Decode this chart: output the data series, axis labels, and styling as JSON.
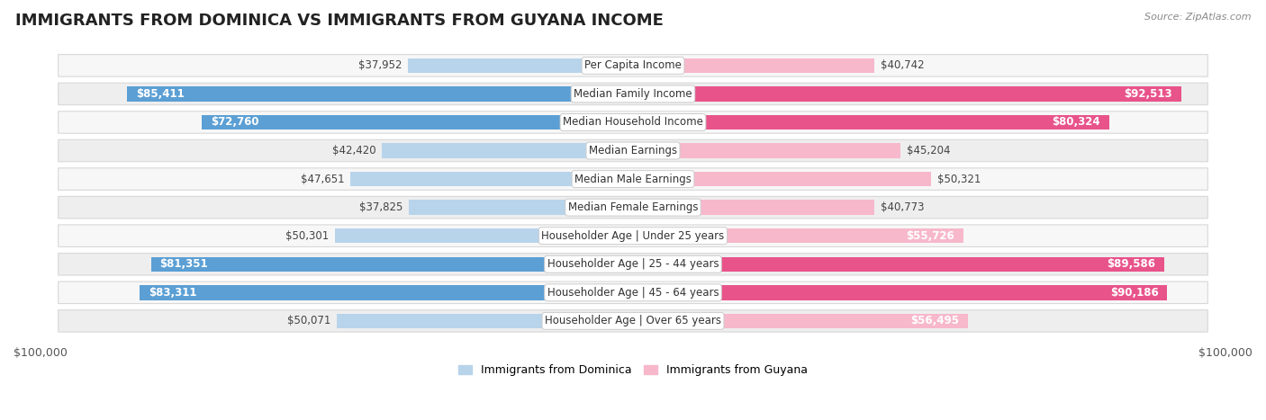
{
  "title": "IMMIGRANTS FROM DOMINICA VS IMMIGRANTS FROM GUYANA INCOME",
  "source": "Source: ZipAtlas.com",
  "categories": [
    "Per Capita Income",
    "Median Family Income",
    "Median Household Income",
    "Median Earnings",
    "Median Male Earnings",
    "Median Female Earnings",
    "Householder Age | Under 25 years",
    "Householder Age | 25 - 44 years",
    "Householder Age | 45 - 64 years",
    "Householder Age | Over 65 years"
  ],
  "dominica_values": [
    37952,
    85411,
    72760,
    42420,
    47651,
    37825,
    50301,
    81351,
    83311,
    50071
  ],
  "guyana_values": [
    40742,
    92513,
    80324,
    45204,
    50321,
    40773,
    55726,
    89586,
    90186,
    56495
  ],
  "dominica_labels": [
    "$37,952",
    "$85,411",
    "$72,760",
    "$42,420",
    "$47,651",
    "$37,825",
    "$50,301",
    "$81,351",
    "$83,311",
    "$50,071"
  ],
  "guyana_labels": [
    "$40,742",
    "$92,513",
    "$80,324",
    "$45,204",
    "$50,321",
    "$40,773",
    "$55,726",
    "$89,586",
    "$90,186",
    "$56,495"
  ],
  "dominica_light": "#b8d4eb",
  "dominica_dark": "#5b9fd4",
  "guyana_light": "#f7b8cc",
  "guyana_dark": "#e8538a",
  "threshold_dark": 60000,
  "row_bg_light": "#f7f7f7",
  "row_bg_dark": "#eeeeee",
  "row_border": "#d8d8d8",
  "max_value": 100000,
  "xlabel_left": "$100,000",
  "xlabel_right": "$100,000",
  "legend_dominica": "Immigrants from Dominica",
  "legend_guyana": "Immigrants from Guyana",
  "title_fontsize": 13,
  "label_fontsize": 9,
  "category_fontsize": 8.5,
  "value_fontsize": 8.5,
  "inside_label_threshold": 55000
}
